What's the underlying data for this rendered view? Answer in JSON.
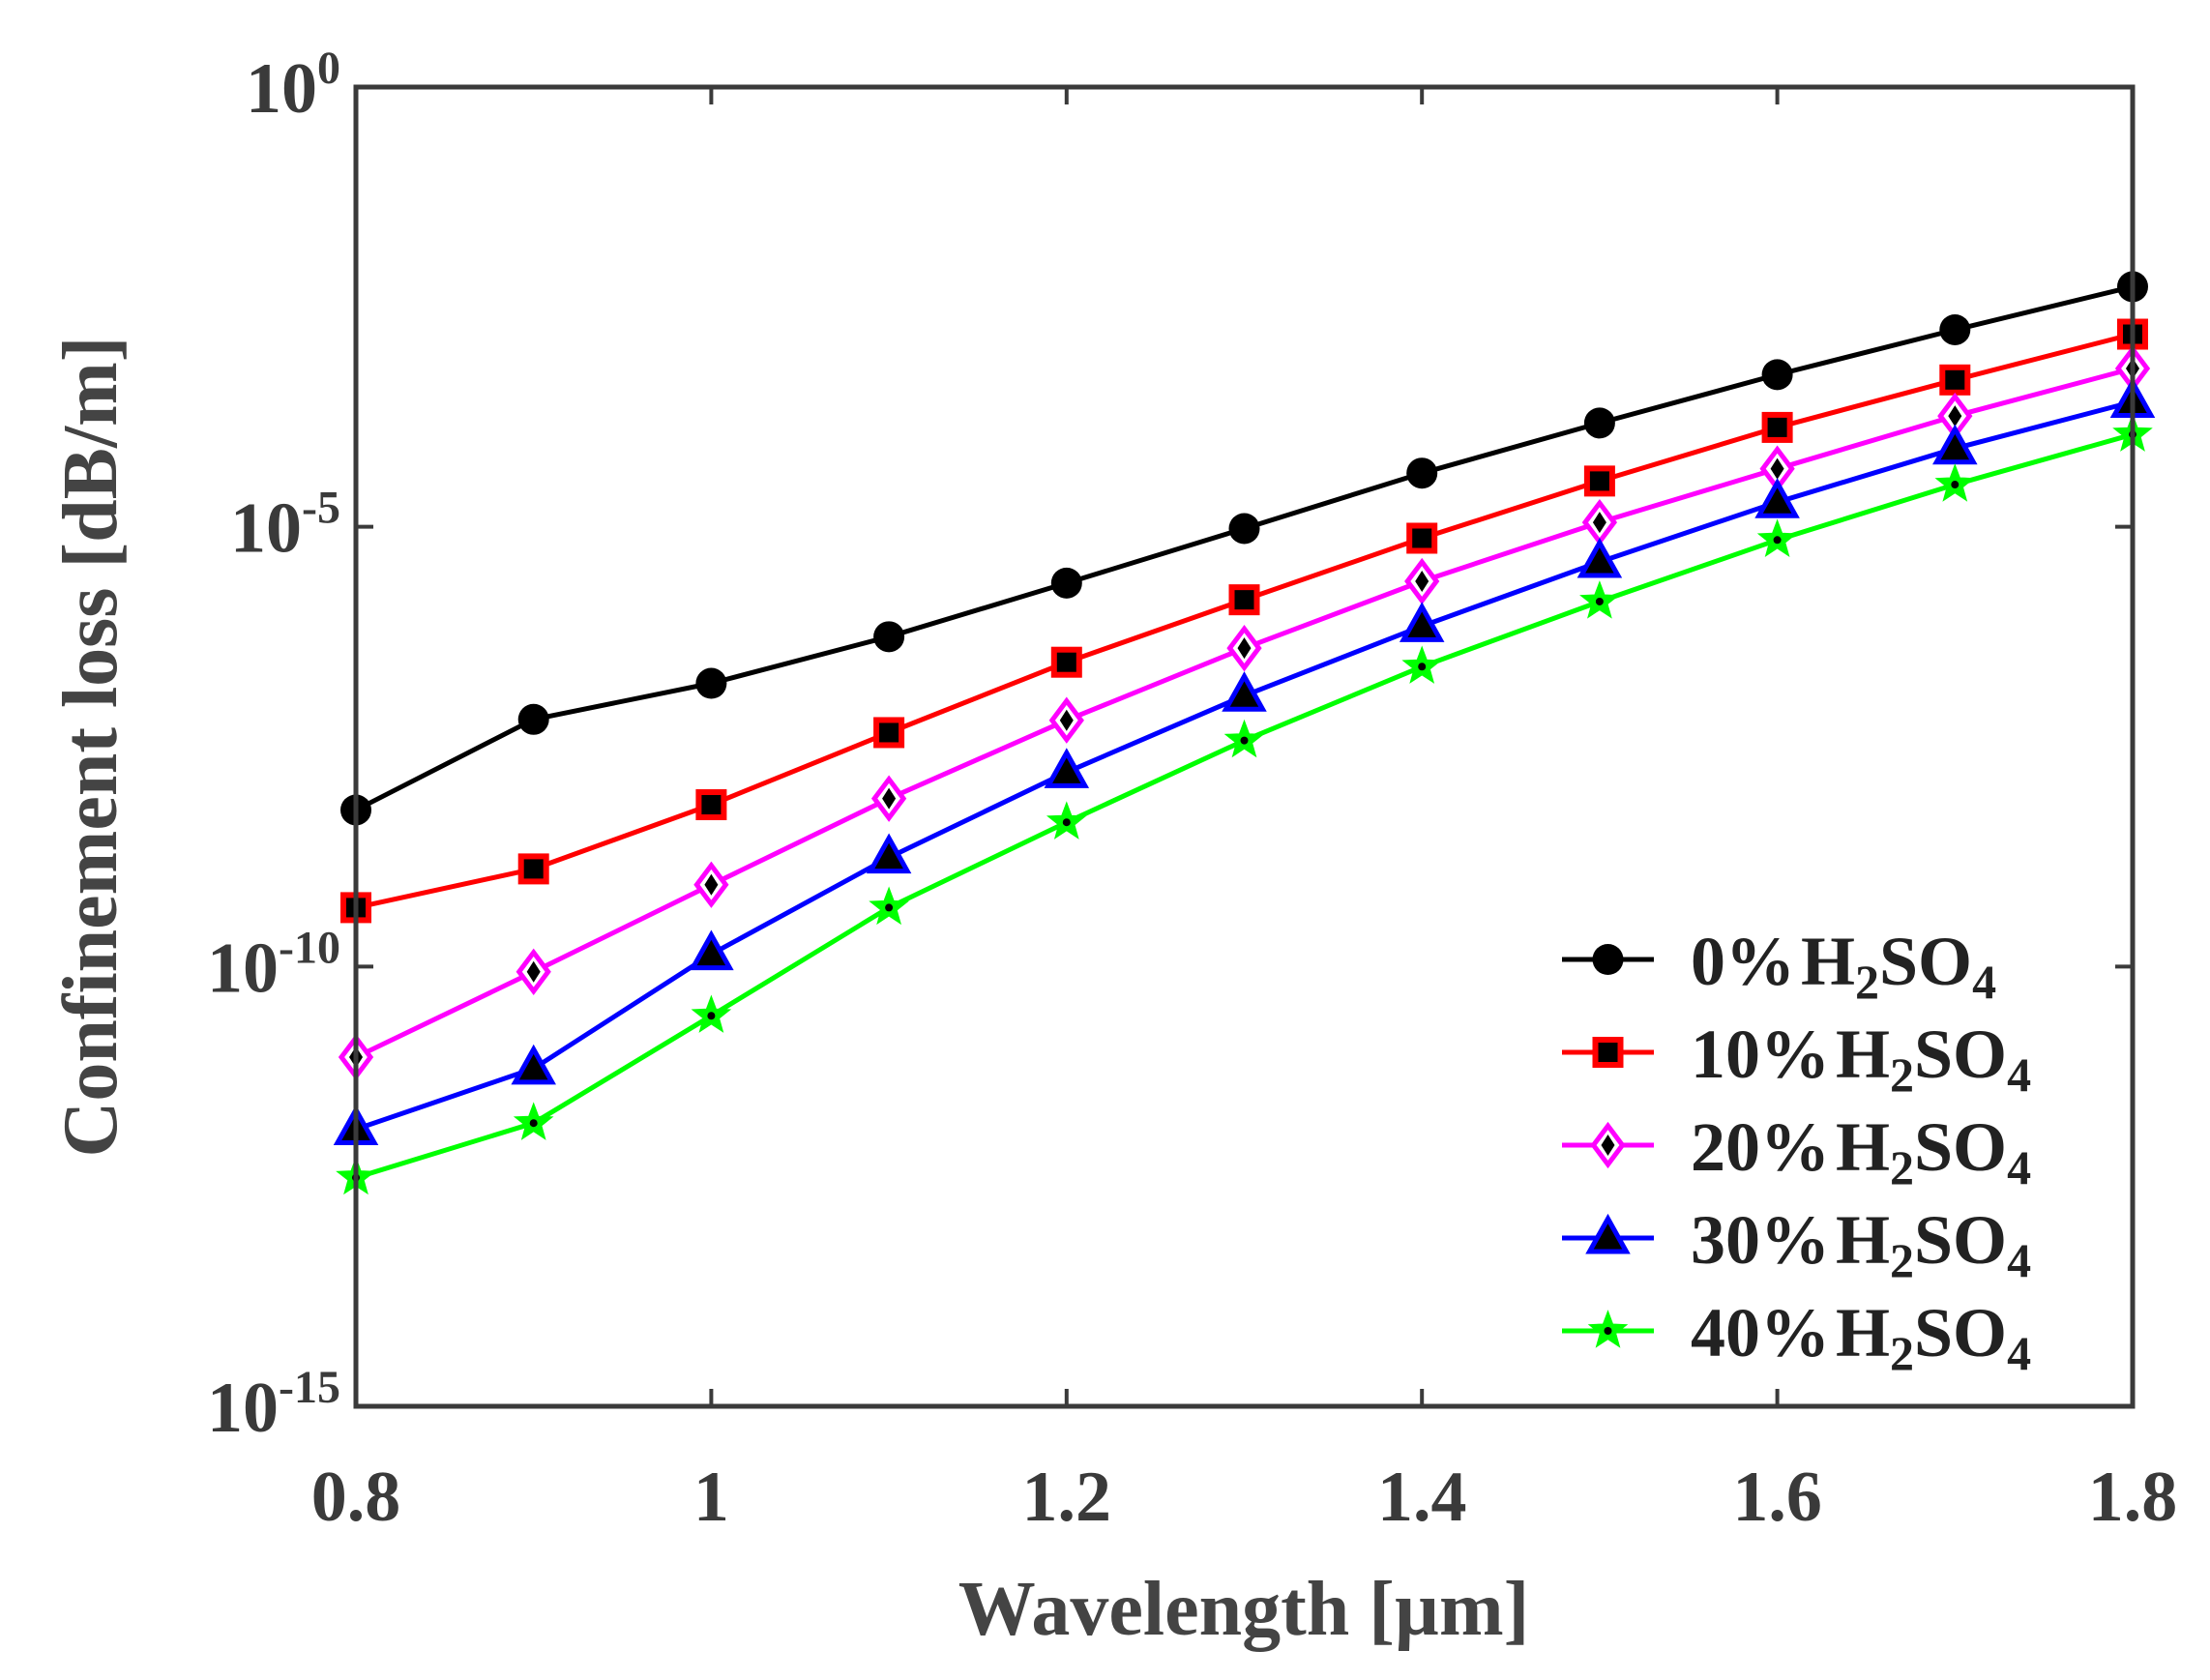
{
  "chart_data": {
    "type": "line",
    "xlabel": "Wavelength [µm]",
    "ylabel": "Confinement loss [dB/m]",
    "yscale": "log",
    "xlim": [
      0.8,
      1.8
    ],
    "ylim_exp": [
      -15,
      0
    ],
    "x_ticks": [
      {
        "value": 0.8,
        "label": "0.8"
      },
      {
        "value": 1.0,
        "label": "1"
      },
      {
        "value": 1.2,
        "label": "1.2"
      },
      {
        "value": 1.4,
        "label": "1.4"
      },
      {
        "value": 1.6,
        "label": "1.6"
      },
      {
        "value": 1.8,
        "label": "1.8"
      }
    ],
    "y_ticks": [
      {
        "exp": 0,
        "base": "10",
        "sup": "0"
      },
      {
        "exp": -5,
        "base": "10",
        "sup": "-5"
      },
      {
        "exp": -10,
        "base": "10",
        "sup": "-10"
      },
      {
        "exp": -15,
        "base": "10",
        "sup": "-15"
      }
    ],
    "x": [
      0.8,
      0.9,
      1.0,
      1.1,
      1.2,
      1.3,
      1.4,
      1.5,
      1.6,
      1.7,
      1.8
    ],
    "legend_position": "bottom-right",
    "series": [
      {
        "name": "0% H2SO4",
        "pct": "0%",
        "chem": [
          "H",
          "2",
          "SO",
          "4"
        ],
        "color": "#000000",
        "marker": "circle",
        "log10_values": [
          -8.22,
          -7.19,
          -6.78,
          -6.25,
          -5.64,
          -5.02,
          -4.39,
          -3.82,
          -3.27,
          -2.76,
          -2.27
        ]
      },
      {
        "name": "10% H2SO4",
        "pct": "10%",
        "chem": [
          "H",
          "2",
          "SO",
          "4"
        ],
        "color": "#ff0000",
        "marker": "square",
        "log10_values": [
          -9.33,
          -8.89,
          -8.16,
          -7.34,
          -6.54,
          -5.83,
          -5.13,
          -4.48,
          -3.87,
          -3.33,
          -2.81
        ]
      },
      {
        "name": "20% H2SO4",
        "pct": "20%",
        "chem": [
          "H",
          "2",
          "SO",
          "4"
        ],
        "color": "#ff00ff",
        "marker": "diamond",
        "log10_values": [
          -11.03,
          -10.06,
          -9.07,
          -8.09,
          -7.2,
          -6.38,
          -5.62,
          -4.95,
          -4.34,
          -3.74,
          -3.2
        ]
      },
      {
        "name": "30% H2SO4",
        "pct": "30%",
        "chem": [
          "H",
          "2",
          "SO",
          "4"
        ],
        "color": "#0000ff",
        "marker": "triangle",
        "log10_values": [
          -11.85,
          -11.16,
          -9.86,
          -8.76,
          -7.79,
          -6.92,
          -6.13,
          -5.4,
          -4.72,
          -4.11,
          -3.58
        ]
      },
      {
        "name": "40% H2SO4",
        "pct": "40%",
        "chem": [
          "H",
          "2",
          "SO",
          "4"
        ],
        "color": "#00ff00",
        "marker": "star",
        "log10_values": [
          -12.4,
          -11.78,
          -10.56,
          -9.33,
          -8.36,
          -7.43,
          -6.59,
          -5.85,
          -5.15,
          -4.52,
          -3.95
        ]
      }
    ]
  }
}
